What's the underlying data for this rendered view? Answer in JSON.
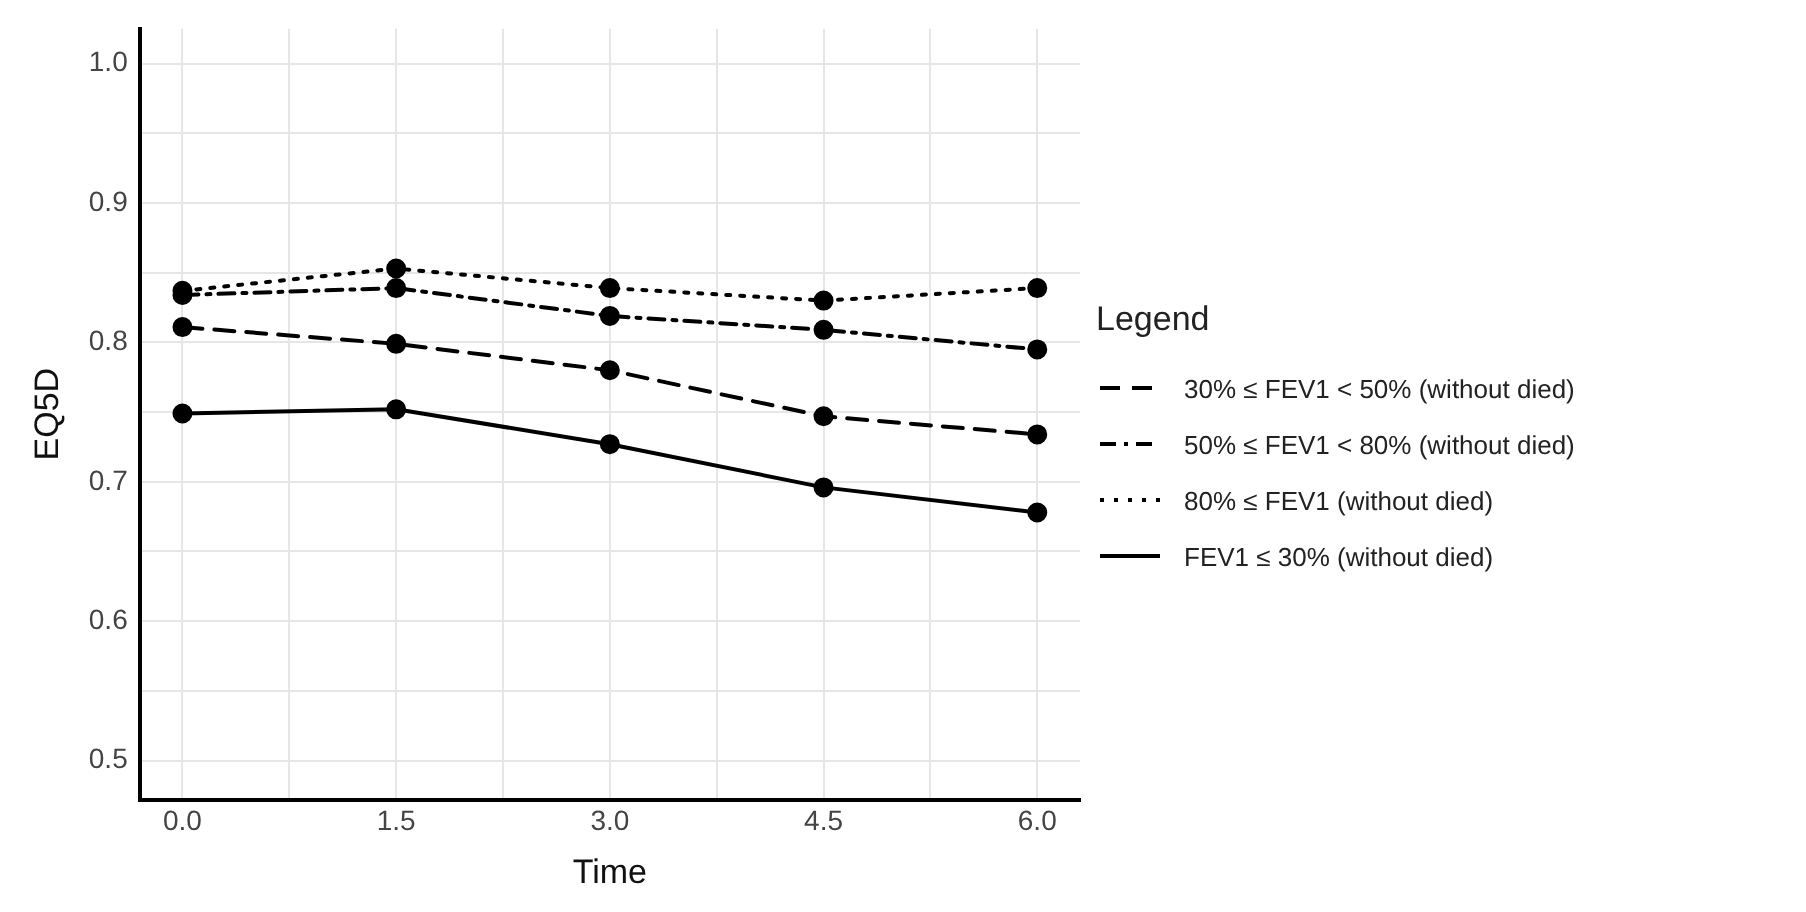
{
  "chart_data": {
    "type": "line",
    "xlabel": "Time",
    "ylabel": "EQ5D",
    "legend_title": "Legend",
    "legend": "right",
    "x": [
      0,
      1.5,
      3,
      4.5,
      6
    ],
    "series": [
      {
        "name": "30% ≤ FEV1 < 50% (without died)",
        "color": "#000000",
        "line_style": "dashed",
        "values": [
          0.811,
          0.799,
          0.78,
          0.747,
          0.734
        ]
      },
      {
        "name": "50% ≤ FEV1 < 80% (without died)",
        "color": "#000000",
        "line_style": "dashdot",
        "values": [
          0.834,
          0.839,
          0.819,
          0.809,
          0.795
        ]
      },
      {
        "name": "80% ≤ FEV1 (without died)",
        "color": "#000000",
        "line_style": "dotted",
        "values": [
          0.837,
          0.853,
          0.839,
          0.83,
          0.839
        ]
      },
      {
        "name": "FEV1 ≤ 30% (without died)",
        "color": "#000000",
        "line_style": "solid",
        "values": [
          0.749,
          0.752,
          0.727,
          0.696,
          0.678
        ]
      }
    ],
    "marker": "circle",
    "grid": true,
    "xlim": [
      -0.3,
      6.3
    ],
    "xticks": [
      {
        "value": 0,
        "label": "0.0"
      },
      {
        "value": 0.75,
        "label": null
      },
      {
        "value": 1.5,
        "label": "1.5"
      },
      {
        "value": 2.25,
        "label": null
      },
      {
        "value": 3,
        "label": "3.0"
      },
      {
        "value": 3.75,
        "label": null
      },
      {
        "value": 4.5,
        "label": "4.5"
      },
      {
        "value": 5.25,
        "label": null
      },
      {
        "value": 6,
        "label": "6.0"
      }
    ],
    "ylim": [
      0.472,
      1.025
    ],
    "yticks": [
      {
        "value": 0.5,
        "label": "0.5"
      },
      {
        "value": 0.55,
        "label": null
      },
      {
        "value": 0.6,
        "label": "0.6"
      },
      {
        "value": 0.65,
        "label": null
      },
      {
        "value": 0.7,
        "label": "0.7"
      },
      {
        "value": 0.75,
        "label": null
      },
      {
        "value": 0.8,
        "label": "0.8"
      },
      {
        "value": 0.85,
        "label": null
      },
      {
        "value": 0.9,
        "label": "0.9"
      },
      {
        "value": 0.95,
        "label": null
      },
      {
        "value": 1.0,
        "label": "1.0"
      }
    ]
  }
}
